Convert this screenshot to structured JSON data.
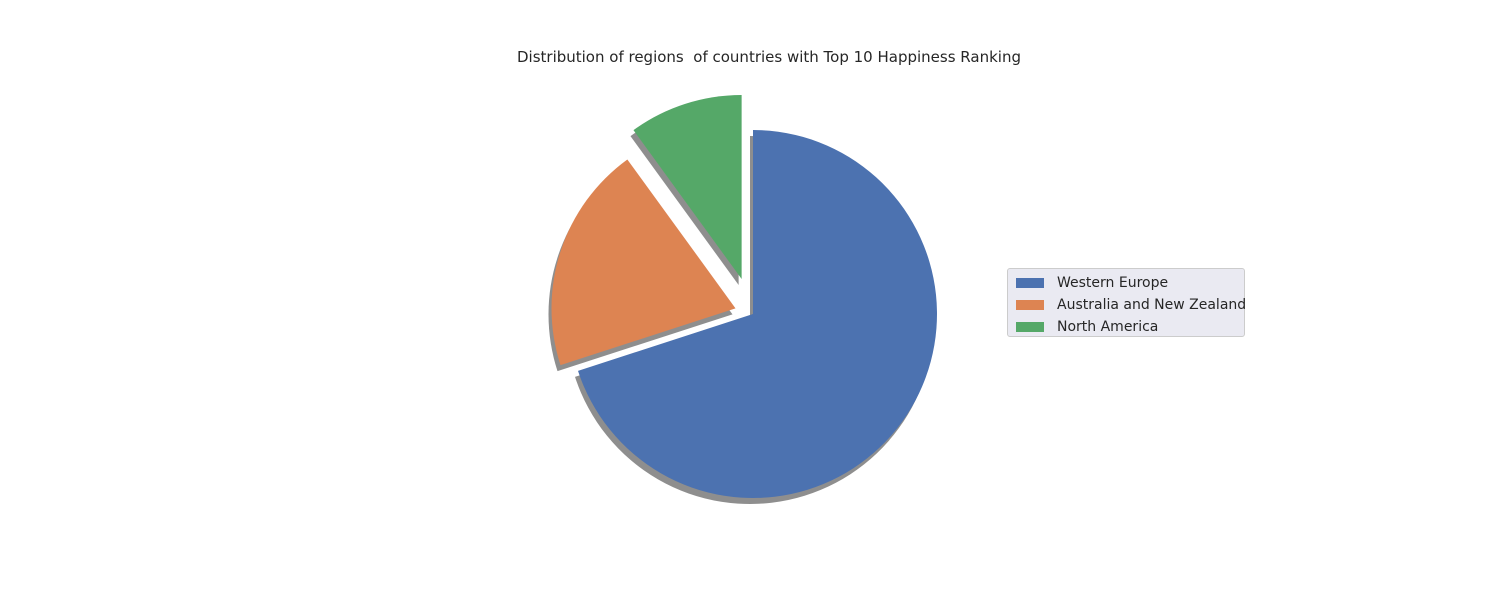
{
  "chart_data": {
    "type": "pie",
    "title": "Distribution of regions  of countries with Top 10 Happiness Ranking",
    "categories": [
      "Western Europe",
      "Australia and New Zealand",
      "North America"
    ],
    "values": [
      7,
      2,
      1
    ],
    "explode": [
      0,
      0.1,
      0.2
    ],
    "colors": [
      "#4c72b0",
      "#dd8452",
      "#55a868"
    ],
    "start_angle": 90,
    "counterclock": false,
    "shadow": true,
    "legend_position": "right"
  }
}
